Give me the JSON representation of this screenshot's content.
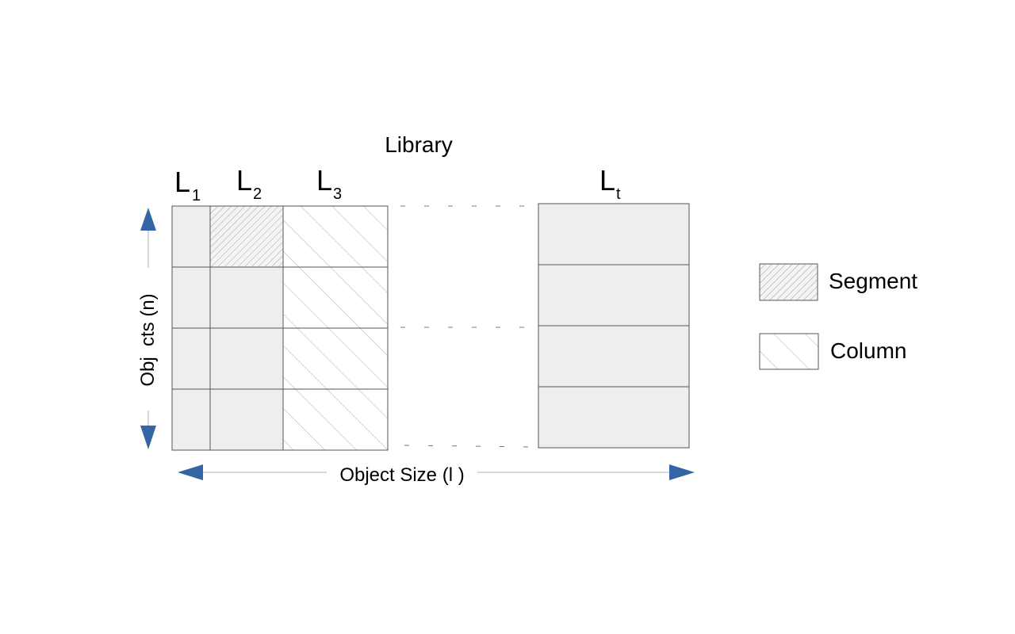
{
  "title": "Library",
  "columns": [
    {
      "letter": "L",
      "sub": "1"
    },
    {
      "letter": "L",
      "sub": "2"
    },
    {
      "letter": "L",
      "sub": "3"
    },
    {
      "letter": "L",
      "sub": "t"
    }
  ],
  "y_axis_label": "Obj  cts (n)",
  "x_axis_label": "Object Size (l )",
  "legend": {
    "segment_label": "Segment",
    "column_label": "Column"
  },
  "colors": {
    "cell_fill": "#eeeeee",
    "cell_stroke": "#555555",
    "arrow": "#3465a4",
    "hatch": "#999999"
  }
}
